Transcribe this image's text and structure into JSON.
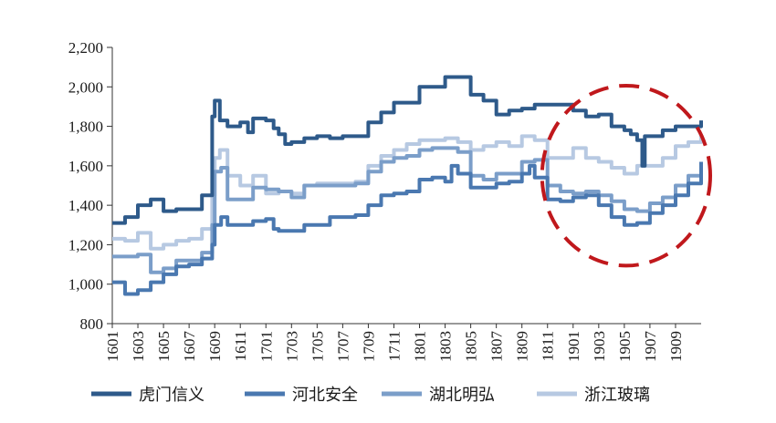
{
  "chart_data": {
    "type": "line",
    "title": "",
    "xlabel": "",
    "ylabel": "",
    "ylim": [
      800,
      2200
    ],
    "yticks": [
      "800",
      "1,000",
      "1,200",
      "1,400",
      "1,600",
      "1,800",
      "2,000",
      "2,200"
    ],
    "ytick_values": [
      800,
      1000,
      1200,
      1400,
      1600,
      1800,
      2000,
      2200
    ],
    "xlim": [
      1601,
      1911
    ],
    "xticks": [
      "1601",
      "1603",
      "1605",
      "1607",
      "1609",
      "1611",
      "1701",
      "1703",
      "1705",
      "1707",
      "1709",
      "1711",
      "1801",
      "1803",
      "1805",
      "1807",
      "1809",
      "1811",
      "1901",
      "1903",
      "1905",
      "1907",
      "1909"
    ],
    "grid": false,
    "legend": "bottom",
    "annotation": "red dashed ellipse highlighting 1811–1911",
    "series": [
      {
        "name": "虎门信义",
        "color": "#2e5a8a",
        "points": [
          [
            1601,
            1310
          ],
          [
            1602,
            1340
          ],
          [
            1603,
            1400
          ],
          [
            1604,
            1430
          ],
          [
            1605,
            1370
          ],
          [
            1606,
            1380
          ],
          [
            1607,
            1380
          ],
          [
            1608,
            1450
          ],
          [
            1608.8,
            1850
          ],
          [
            1609,
            1930
          ],
          [
            1609.4,
            1830
          ],
          [
            1610,
            1800
          ],
          [
            1611,
            1820
          ],
          [
            1611.6,
            1770
          ],
          [
            1612,
            1840
          ],
          [
            1701,
            1830
          ],
          [
            1701.6,
            1790
          ],
          [
            1702,
            1760
          ],
          [
            1702.5,
            1710
          ],
          [
            1703,
            1720
          ],
          [
            1704,
            1740
          ],
          [
            1705,
            1750
          ],
          [
            1706,
            1740
          ],
          [
            1707,
            1750
          ],
          [
            1708,
            1750
          ],
          [
            1709,
            1820
          ],
          [
            1710,
            1870
          ],
          [
            1711,
            1920
          ],
          [
            1712,
            1920
          ],
          [
            1801,
            2000
          ],
          [
            1802,
            2000
          ],
          [
            1803,
            2050
          ],
          [
            1804,
            2050
          ],
          [
            1805,
            1960
          ],
          [
            1806,
            1930
          ],
          [
            1807,
            1860
          ],
          [
            1808,
            1880
          ],
          [
            1809,
            1890
          ],
          [
            1810,
            1910
          ],
          [
            1811,
            1910
          ],
          [
            1812,
            1910
          ],
          [
            1901,
            1880
          ],
          [
            1902,
            1850
          ],
          [
            1903,
            1860
          ],
          [
            1904,
            1800
          ],
          [
            1905,
            1780
          ],
          [
            1905.5,
            1760
          ],
          [
            1906,
            1730
          ],
          [
            1906.4,
            1600
          ],
          [
            1906.6,
            1750
          ],
          [
            1907,
            1750
          ],
          [
            1908,
            1780
          ],
          [
            1909,
            1800
          ],
          [
            1910,
            1800
          ],
          [
            1911,
            1830
          ]
        ]
      },
      {
        "name": "河北安全",
        "color": "#4a78b0",
        "points": [
          [
            1601,
            1010
          ],
          [
            1602,
            950
          ],
          [
            1603,
            970
          ],
          [
            1604,
            1010
          ],
          [
            1605,
            1050
          ],
          [
            1606,
            1090
          ],
          [
            1607,
            1100
          ],
          [
            1608,
            1130
          ],
          [
            1608.8,
            1200
          ],
          [
            1609,
            1300
          ],
          [
            1609.5,
            1340
          ],
          [
            1610,
            1300
          ],
          [
            1611,
            1300
          ],
          [
            1612,
            1320
          ],
          [
            1701,
            1330
          ],
          [
            1701.6,
            1280
          ],
          [
            1702,
            1270
          ],
          [
            1703,
            1270
          ],
          [
            1704,
            1300
          ],
          [
            1705,
            1300
          ],
          [
            1706,
            1340
          ],
          [
            1707,
            1340
          ],
          [
            1708,
            1350
          ],
          [
            1709,
            1400
          ],
          [
            1710,
            1450
          ],
          [
            1711,
            1460
          ],
          [
            1712,
            1470
          ],
          [
            1801,
            1530
          ],
          [
            1802,
            1540
          ],
          [
            1803,
            1520
          ],
          [
            1803.5,
            1600
          ],
          [
            1804,
            1560
          ],
          [
            1805,
            1490
          ],
          [
            1806,
            1490
          ],
          [
            1807,
            1510
          ],
          [
            1808,
            1520
          ],
          [
            1809,
            1560
          ],
          [
            1809.6,
            1600
          ],
          [
            1810,
            1540
          ],
          [
            1811,
            1430
          ],
          [
            1812,
            1420
          ],
          [
            1901,
            1440
          ],
          [
            1902,
            1450
          ],
          [
            1903,
            1400
          ],
          [
            1904,
            1340
          ],
          [
            1905,
            1300
          ],
          [
            1906,
            1310
          ],
          [
            1907,
            1360
          ],
          [
            1908,
            1400
          ],
          [
            1909,
            1450
          ],
          [
            1910,
            1510
          ],
          [
            1911,
            1620
          ]
        ]
      },
      {
        "name": "湖北明弘",
        "color": "#7b9ec9",
        "points": [
          [
            1601,
            1140
          ],
          [
            1602,
            1140
          ],
          [
            1603,
            1150
          ],
          [
            1604,
            1060
          ],
          [
            1605,
            1080
          ],
          [
            1606,
            1120
          ],
          [
            1607,
            1120
          ],
          [
            1608,
            1160
          ],
          [
            1608.8,
            1300
          ],
          [
            1609,
            1570
          ],
          [
            1609.5,
            1590
          ],
          [
            1610,
            1430
          ],
          [
            1611,
            1430
          ],
          [
            1612,
            1490
          ],
          [
            1701,
            1480
          ],
          [
            1702,
            1470
          ],
          [
            1703,
            1440
          ],
          [
            1704,
            1500
          ],
          [
            1705,
            1500
          ],
          [
            1706,
            1500
          ],
          [
            1707,
            1500
          ],
          [
            1708,
            1510
          ],
          [
            1709,
            1570
          ],
          [
            1710,
            1620
          ],
          [
            1711,
            1640
          ],
          [
            1712,
            1650
          ],
          [
            1801,
            1680
          ],
          [
            1802,
            1690
          ],
          [
            1803,
            1690
          ],
          [
            1804,
            1670
          ],
          [
            1805,
            1550
          ],
          [
            1806,
            1530
          ],
          [
            1807,
            1560
          ],
          [
            1808,
            1560
          ],
          [
            1809,
            1620
          ],
          [
            1810,
            1630
          ],
          [
            1811,
            1500
          ],
          [
            1812,
            1470
          ],
          [
            1901,
            1460
          ],
          [
            1902,
            1470
          ],
          [
            1903,
            1450
          ],
          [
            1904,
            1420
          ],
          [
            1905,
            1380
          ],
          [
            1906,
            1370
          ],
          [
            1907,
            1410
          ],
          [
            1908,
            1440
          ],
          [
            1909,
            1500
          ],
          [
            1910,
            1550
          ],
          [
            1911,
            1560
          ]
        ]
      },
      {
        "name": "浙江玻璃",
        "color": "#b7c9e2",
        "points": [
          [
            1601,
            1230
          ],
          [
            1602,
            1220
          ],
          [
            1603,
            1260
          ],
          [
            1604,
            1180
          ],
          [
            1605,
            1200
          ],
          [
            1606,
            1220
          ],
          [
            1607,
            1230
          ],
          [
            1608,
            1280
          ],
          [
            1608.8,
            1450
          ],
          [
            1609,
            1640
          ],
          [
            1609.4,
            1680
          ],
          [
            1610,
            1550
          ],
          [
            1611,
            1500
          ],
          [
            1612,
            1550
          ],
          [
            1701,
            1460
          ],
          [
            1702,
            1470
          ],
          [
            1703,
            1460
          ],
          [
            1704,
            1500
          ],
          [
            1705,
            1510
          ],
          [
            1706,
            1510
          ],
          [
            1707,
            1510
          ],
          [
            1708,
            1520
          ],
          [
            1709,
            1600
          ],
          [
            1710,
            1650
          ],
          [
            1711,
            1680
          ],
          [
            1712,
            1710
          ],
          [
            1801,
            1730
          ],
          [
            1802,
            1730
          ],
          [
            1803,
            1740
          ],
          [
            1804,
            1720
          ],
          [
            1805,
            1680
          ],
          [
            1806,
            1700
          ],
          [
            1807,
            1720
          ],
          [
            1808,
            1700
          ],
          [
            1809,
            1750
          ],
          [
            1810,
            1730
          ],
          [
            1811,
            1640
          ],
          [
            1812,
            1640
          ],
          [
            1901,
            1690
          ],
          [
            1902,
            1640
          ],
          [
            1903,
            1620
          ],
          [
            1904,
            1590
          ],
          [
            1905,
            1560
          ],
          [
            1906,
            1600
          ],
          [
            1907,
            1600
          ],
          [
            1908,
            1640
          ],
          [
            1909,
            1700
          ],
          [
            1910,
            1720
          ],
          [
            1911,
            1760
          ]
        ]
      }
    ]
  }
}
